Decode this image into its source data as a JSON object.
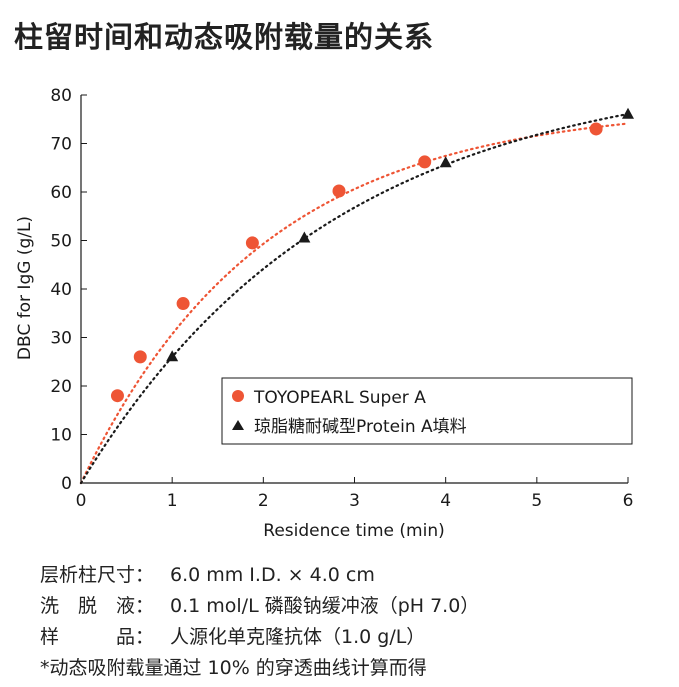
{
  "title": "柱留时间和动态吸附载量的关系",
  "chart_data": {
    "type": "scatter",
    "xlabel": "Residence time (min)",
    "ylabel": "DBC for IgG (g/L)",
    "xlim": [
      0,
      6
    ],
    "ylim": [
      0,
      80
    ],
    "xticks": [
      "0",
      "1",
      "2",
      "3",
      "4",
      "5",
      "6"
    ],
    "yticks": [
      "0",
      "10",
      "20",
      "30",
      "40",
      "50",
      "60",
      "70",
      "80"
    ],
    "legend_position": "lower-right",
    "series": [
      {
        "name": "TOYOPEARL Super A",
        "marker": "circle",
        "color": "#ee5535",
        "x": [
          0.4,
          0.65,
          1.12,
          1.88,
          2.83,
          3.77,
          5.65
        ],
        "y": [
          18,
          26,
          37,
          49.5,
          60.2,
          66.2,
          73
        ],
        "trend_color": "#ee5535",
        "trend": {
          "a": 78,
          "k": 0.5
        }
      },
      {
        "name": "琼脂糖耐碱型Protein A填料",
        "marker": "triangle",
        "color": "#1a1a1a",
        "x": [
          1.0,
          2.45,
          4.0,
          6.0
        ],
        "y": [
          26,
          50.5,
          66,
          76
        ],
        "trend_color": "#1a1a1a",
        "trend": {
          "a": 86,
          "k": 0.36
        }
      }
    ]
  },
  "notes": [
    {
      "label": "层析柱尺寸：",
      "value": "6.0 mm I.D. × 4.0 cm"
    },
    {
      "label": "洗　脱　液：",
      "value": "0.1 mol/L 磷酸钠缓冲液（pH 7.0）"
    },
    {
      "label": "样　　　品：",
      "value": "人源化单克隆抗体（1.0 g/L）"
    },
    {
      "label": "",
      "value": "*动态吸附载量通过 10% 的穿透曲线计算而得"
    }
  ]
}
